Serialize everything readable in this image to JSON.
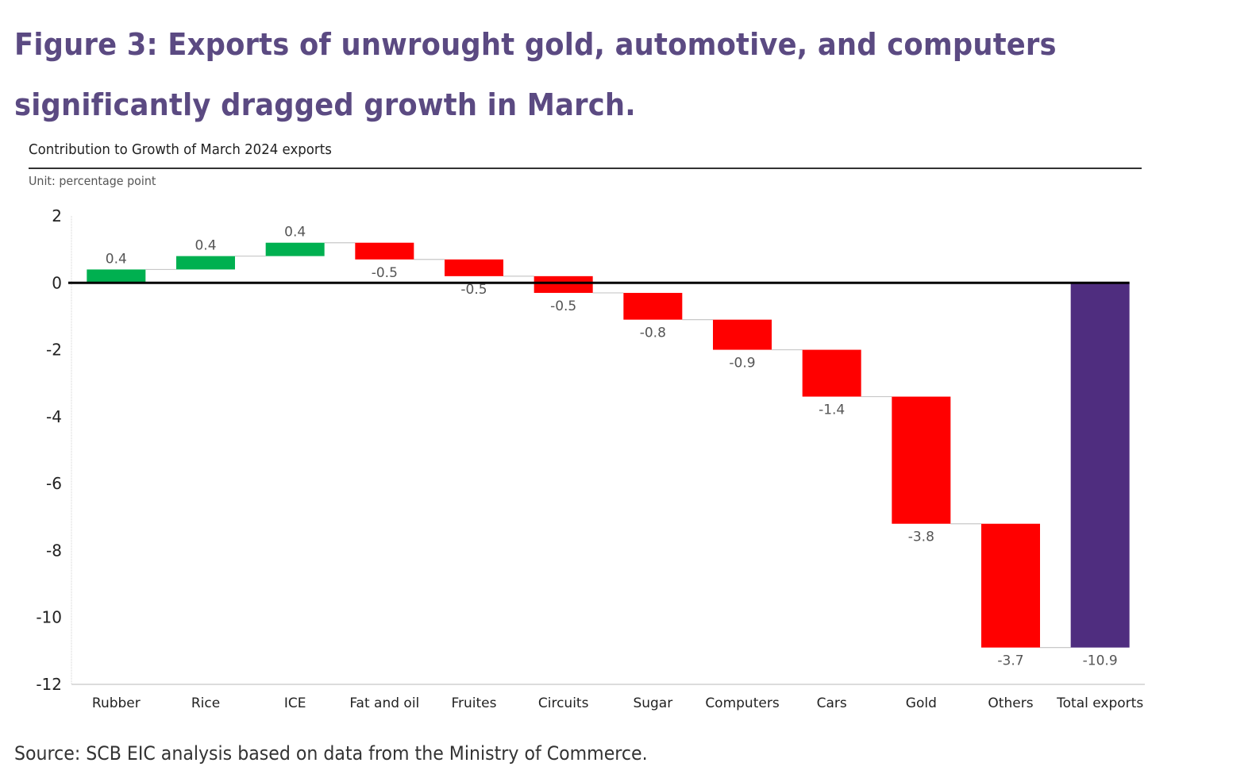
{
  "figure_title": "Figure 3: Exports of unwrought gold, automotive, and computers significantly dragged growth in March.",
  "source": "Source: SCB EIC analysis based on data from the Ministry of Commerce.",
  "colors": {
    "title": "#5b4a82",
    "increase": "#00b050",
    "decrease": "#ff0000",
    "total": "#4f2d7f",
    "zero_line": "#000000",
    "connector": "#c8c8c8"
  },
  "chart_data": {
    "type": "bar",
    "subtype": "waterfall",
    "title": "Contribution to Growth of March 2024 exports",
    "subtitle": "Unit: percentage point",
    "xlabel": "",
    "ylabel": "",
    "ylim": [
      -12,
      2
    ],
    "yticks": [
      2,
      0,
      -2,
      -4,
      -6,
      -8,
      -10,
      -12
    ],
    "grid": false,
    "legend": "none",
    "categories": [
      "Rubber",
      "Rice",
      "ICE",
      "Fat and oil",
      "Fruites",
      "Circuits",
      "Sugar",
      "Computers",
      "Cars",
      "Gold",
      "Others",
      "Total exports"
    ],
    "values": [
      0.4,
      0.4,
      0.4,
      -0.5,
      -0.5,
      -0.5,
      -0.8,
      -0.9,
      -1.4,
      -3.8,
      -3.7,
      -10.9
    ],
    "labels": [
      "0.4",
      "0.4",
      "0.4",
      "-0.5",
      "-0.5",
      "-0.5",
      "-0.8",
      "-0.9",
      "-1.4",
      "-3.8",
      "-3.7",
      "-10.9"
    ],
    "is_total": [
      false,
      false,
      false,
      false,
      false,
      false,
      false,
      false,
      false,
      false,
      false,
      true
    ]
  }
}
